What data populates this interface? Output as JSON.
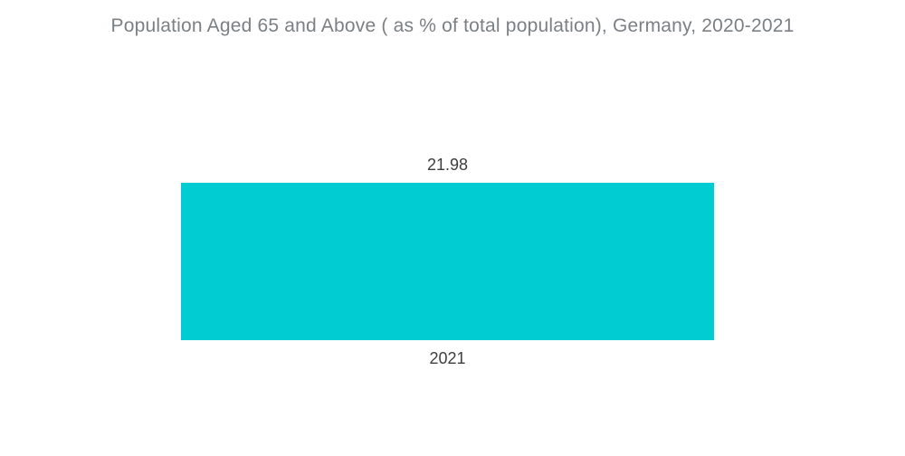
{
  "colors": {
    "background": "#FFFFFF",
    "bar": "#00CCD2",
    "title_text": "#7C8084",
    "value_text": "#3E3E3E"
  },
  "chart_data": {
    "type": "bar",
    "title": "Population Aged 65 and Above ( as % of total population), Germany, 2020-2021",
    "categories": [
      "2021"
    ],
    "values": [
      21.98
    ],
    "value_labels": [
      "21.98"
    ],
    "xlabel": "",
    "ylabel": "",
    "ylim": [
      0,
      21.98
    ],
    "grid": false,
    "legend": "none",
    "orientation": "vertical",
    "bar_color": "#00CCD2"
  }
}
